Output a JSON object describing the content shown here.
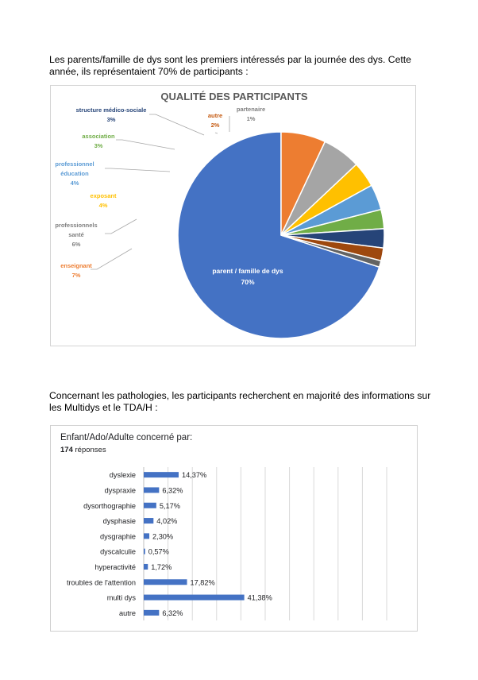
{
  "paragraphs": {
    "intro": "Les parents/famille de dys sont les premiers intéressés par la journée des dys. Cette année, ils représentaient 70% de participants :",
    "pathologies": "Concernant les pathologies, les participants recherchent en majorité des informations sur les Multidys et le TDA/H :"
  },
  "chart_data": [
    {
      "type": "pie",
      "title": "QUALITÉ DES PARTICIPANTS",
      "legend": "none",
      "slices": [
        {
          "label": "parent / famille de dys",
          "value": 70,
          "value_label": "70%",
          "color": "#4472c4"
        },
        {
          "label": "enseignant",
          "value": 7,
          "value_label": "7%",
          "color": "#ed7d31"
        },
        {
          "label_lines": [
            "professionnels",
            "santé"
          ],
          "value": 6,
          "value_label": "6%",
          "color": "#a5a5a5"
        },
        {
          "label": "exposant",
          "value": 4,
          "value_label": "4%",
          "color": "#ffc000"
        },
        {
          "label_lines": [
            "professionnel",
            "éducation"
          ],
          "value": 4,
          "value_label": "4%",
          "color": "#5b9bd5"
        },
        {
          "label": "association",
          "value": 3,
          "value_label": "3%",
          "color": "#70ad47"
        },
        {
          "label": "structure médico-sociale",
          "value": 3,
          "value_label": "3%",
          "color": "#264478"
        },
        {
          "label": "autre",
          "value": 2,
          "value_label": "2%",
          "color": "#9e480e"
        },
        {
          "label": "partenaire",
          "value": 1,
          "value_label": "1%",
          "color": "#636363"
        }
      ]
    },
    {
      "type": "bar",
      "orientation": "horizontal",
      "title": "Enfant/Ado/Adulte concerné par:",
      "subtitle_count": "174",
      "subtitle_text": " réponses",
      "xlim": [
        0,
        100
      ],
      "grid": true,
      "bar_color": "#4472c4",
      "categories": [
        "dyslexie",
        "dyspraxie",
        "dysorthographie",
        "dysphasie",
        "dysgraphie",
        "dyscalculie",
        "hyperactivité",
        "troubles de l'attention",
        "multi dys",
        "autre"
      ],
      "values": [
        14.37,
        6.32,
        5.17,
        4.02,
        2.3,
        0.57,
        1.72,
        17.82,
        41.38,
        6.32
      ],
      "value_labels": [
        "14,37%",
        "6,32%",
        "5,17%",
        "4,02%",
        "2,30%",
        "0,57%",
        "1,72%",
        "17,82%",
        "41,38%",
        "6,32%"
      ]
    }
  ]
}
